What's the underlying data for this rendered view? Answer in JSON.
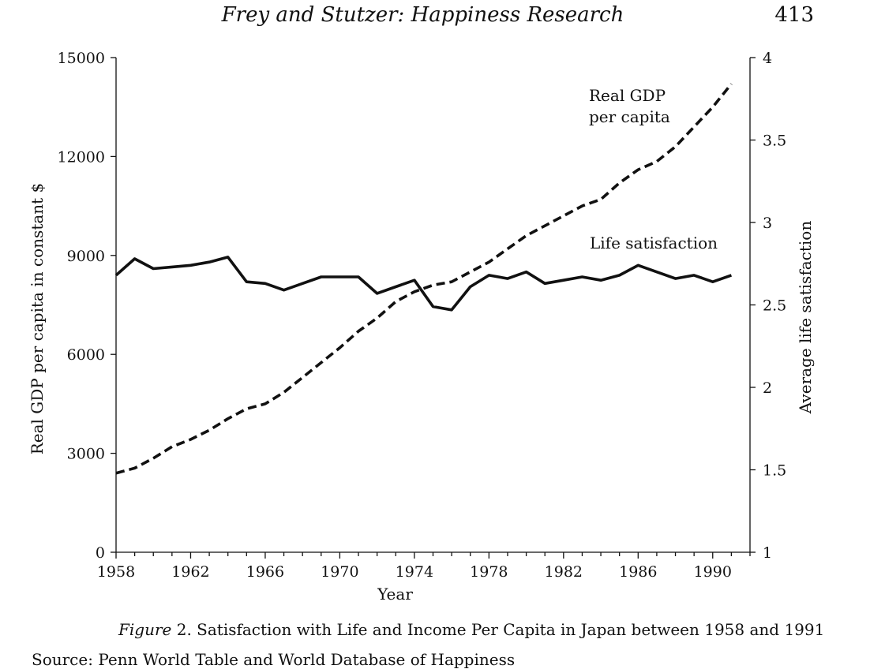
{
  "header": {
    "title": "Frey and Stutzer: Happiness Research",
    "page_number": "413"
  },
  "caption": {
    "label": "Figure",
    "text": "2. Satisfaction with Life and Income Per Capita in Japan between 1958 and 1991"
  },
  "source": {
    "text": "Source: Penn World Table and World Database of Happiness"
  },
  "chart_data": {
    "type": "line",
    "title": "",
    "xlabel": "Year",
    "ylabel_left": "Real GDP per capita in constant $",
    "ylabel_right": "Average life satisfaction",
    "xlim": [
      1958,
      1992
    ],
    "ylim_left": [
      0,
      15000
    ],
    "ylim_right": [
      1,
      4
    ],
    "x_ticks": [
      1958,
      1962,
      1966,
      1970,
      1974,
      1978,
      1982,
      1986,
      1990
    ],
    "y_ticks_left": [
      0,
      3000,
      6000,
      9000,
      12000,
      15000
    ],
    "y_ticks_right": [
      1,
      1.5,
      2,
      2.5,
      3,
      3.5,
      4
    ],
    "y_tick_labels_right": [
      "1",
      "1.5",
      "2",
      "2.5",
      "3",
      "3.5",
      "4"
    ],
    "grid": false,
    "legend": "none",
    "x": [
      1958,
      1959,
      1960,
      1961,
      1962,
      1963,
      1964,
      1965,
      1966,
      1967,
      1968,
      1969,
      1970,
      1971,
      1972,
      1973,
      1974,
      1975,
      1976,
      1977,
      1978,
      1979,
      1980,
      1981,
      1982,
      1983,
      1984,
      1985,
      1986,
      1987,
      1988,
      1989,
      1990,
      1991
    ],
    "series": [
      {
        "name": "Real GDP per capita",
        "axis": "left",
        "style": "dashed",
        "values": [
          2400,
          2550,
          2850,
          3200,
          3420,
          3700,
          4050,
          4350,
          4500,
          4850,
          5300,
          5750,
          6200,
          6700,
          7100,
          7600,
          7900,
          8100,
          8200,
          8500,
          8800,
          9200,
          9600,
          9900,
          10200,
          10500,
          10700,
          11200,
          11600,
          11850,
          12300,
          12900,
          13500,
          14200
        ]
      },
      {
        "name": "Life satisfaction",
        "axis": "right",
        "style": "solid",
        "values": [
          2.68,
          2.78,
          2.72,
          2.73,
          2.74,
          2.76,
          2.79,
          2.64,
          2.63,
          2.59,
          2.63,
          2.67,
          2.67,
          2.67,
          2.57,
          2.61,
          2.65,
          2.49,
          2.47,
          2.61,
          2.68,
          2.66,
          2.7,
          2.63,
          2.65,
          2.67,
          2.65,
          2.68,
          2.74,
          2.7,
          2.66,
          2.68,
          2.64,
          2.68
        ]
      }
    ],
    "annotations": [
      {
        "text_lines": [
          "Real GDP",
          "per capita"
        ],
        "series": "Real GDP per capita"
      },
      {
        "text_lines": [
          "Life satisfaction"
        ],
        "series": "Life satisfaction"
      }
    ]
  }
}
